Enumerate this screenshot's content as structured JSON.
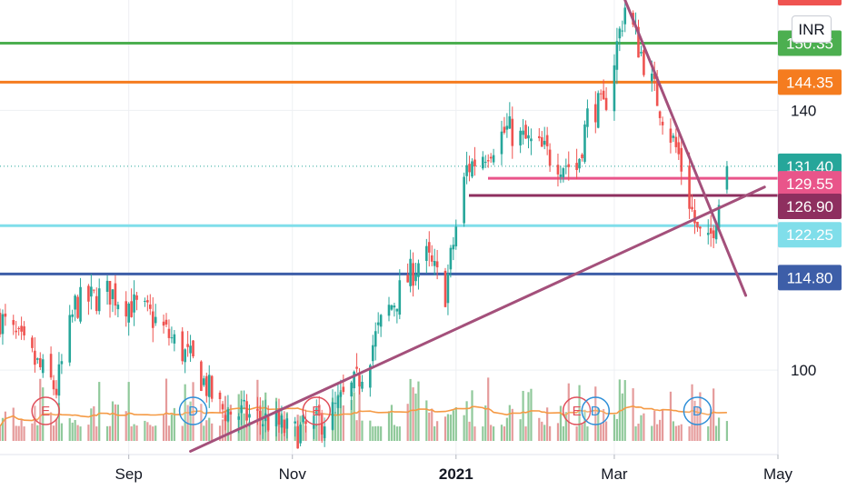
{
  "currency": "INR",
  "colors": {
    "up": "#26a69a",
    "down": "#ef5350",
    "vol_up": "#7cc08a",
    "vol_down": "#e0898a",
    "ma": "#f59a45",
    "trend": "#a4507b",
    "green_line": "#4caf50",
    "orange_line": "#f57c1f",
    "cyan_line": "#80deea",
    "blue_line": "#3d5ea8",
    "pink_line": "#e9558a",
    "maroon_line": "#8e2f5f",
    "event_earnings": "#e04e5a",
    "event_dividend": "#2e8fd8"
  },
  "chart_data": {
    "type": "candlestick",
    "y_axis": {
      "ticks": [
        100,
        140
      ],
      "range": [
        87,
        157
      ]
    },
    "x_axis": {
      "labels": [
        "Sep",
        "Nov",
        "2021",
        "Mar",
        "May"
      ],
      "label_dates": [
        "2020-09-01",
        "2020-11-01",
        "2021-01-01",
        "2021-03-01",
        "2021-05-01"
      ],
      "range": [
        "2020-07-15",
        "2021-05-01"
      ]
    },
    "price_levels": [
      {
        "value": 150.35,
        "color": "#4caf50",
        "label": "150.35"
      },
      {
        "value": 144.35,
        "color": "#f57c1f",
        "label": "144.35"
      },
      {
        "value": 131.4,
        "color": "#26a69a",
        "label": "131.40",
        "style": "dotted",
        "current": true
      },
      {
        "value": 129.55,
        "color": "#e9558a",
        "label": "129.55"
      },
      {
        "value": 126.9,
        "color": "#8e2f5f",
        "label": "126.90"
      },
      {
        "value": 122.25,
        "color": "#80deea",
        "label": "122.25"
      },
      {
        "value": 114.8,
        "color": "#3d5ea8",
        "label": "114.80"
      }
    ],
    "trendlines": [
      {
        "from": [
          "2020-09-24",
          87.5
        ],
        "to": [
          "2021-04-26",
          128.2
        ]
      },
      {
        "from": [
          "2021-03-05",
          157.0
        ],
        "to": [
          "2021-04-19",
          111.5
        ]
      }
    ],
    "anchors": [
      [
        "2020-07-15",
        108
      ],
      [
        "2020-08-05",
        97
      ],
      [
        "2020-08-12",
        110
      ],
      [
        "2020-08-25",
        112
      ],
      [
        "2020-09-10",
        108
      ],
      [
        "2020-09-25",
        101
      ],
      [
        "2020-10-05",
        94
      ],
      [
        "2020-10-25",
        92
      ],
      [
        "2020-11-01",
        90
      ],
      [
        "2020-11-15",
        93
      ],
      [
        "2020-11-25",
        98
      ],
      [
        "2020-12-05",
        108
      ],
      [
        "2020-12-20",
        118
      ],
      [
        "2020-12-28",
        112
      ],
      [
        "2021-01-01",
        122
      ],
      [
        "2021-01-05",
        131
      ],
      [
        "2021-01-20",
        137
      ],
      [
        "2021-02-05",
        133
      ],
      [
        "2021-02-15",
        131
      ],
      [
        "2021-02-20",
        141
      ],
      [
        "2021-02-25",
        140
      ],
      [
        "2021-03-05",
        156
      ],
      [
        "2021-03-15",
        144
      ],
      [
        "2021-03-25",
        133
      ],
      [
        "2021-04-01",
        121
      ],
      [
        "2021-04-05",
        119
      ],
      [
        "2021-04-12",
        131.4
      ]
    ],
    "volume_ma_note": "volume bars with moving average",
    "events": [
      {
        "type": "E",
        "date": "2020-08-01"
      },
      {
        "type": "D",
        "date": "2020-09-25"
      },
      {
        "type": "E",
        "date": "2020-11-10"
      },
      {
        "type": "E",
        "date": "2021-02-15"
      },
      {
        "type": "D",
        "date": "2021-02-22"
      },
      {
        "type": "D",
        "date": "2021-04-01"
      }
    ]
  }
}
